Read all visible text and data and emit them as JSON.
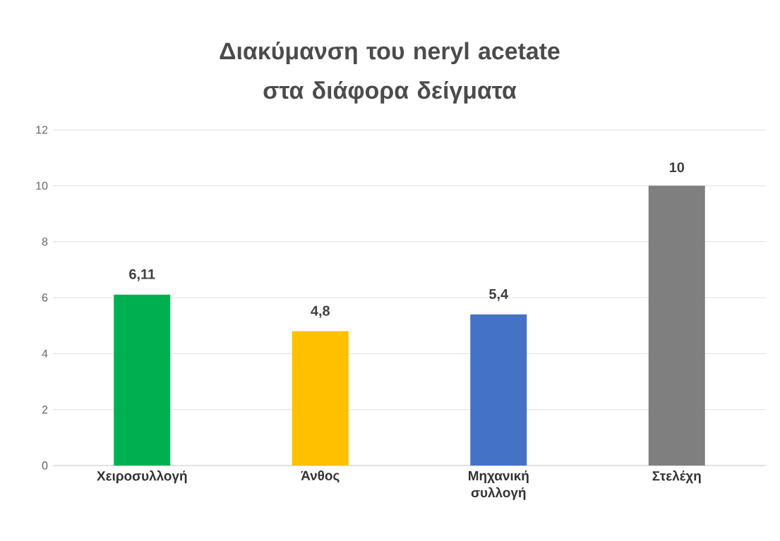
{
  "chart_data": {
    "type": "bar",
    "title": "Διακύμανση του neryl acetate στα διάφορα δείγματα",
    "categories": [
      "Χειροσυλλογή",
      "Άνθος",
      "Μηχανική συλλογή",
      "Στελέχη"
    ],
    "values": [
      6.11,
      4.8,
      5.4,
      10
    ],
    "value_labels": [
      "6,11",
      "4,8",
      "5,4",
      "10"
    ],
    "colors": [
      "#00b050",
      "#ffc000",
      "#4472c4",
      "#7f7f7f"
    ],
    "ylim": [
      0,
      12
    ],
    "yticks": [
      0,
      2,
      4,
      6,
      8,
      10,
      12
    ],
    "grid": "y"
  }
}
